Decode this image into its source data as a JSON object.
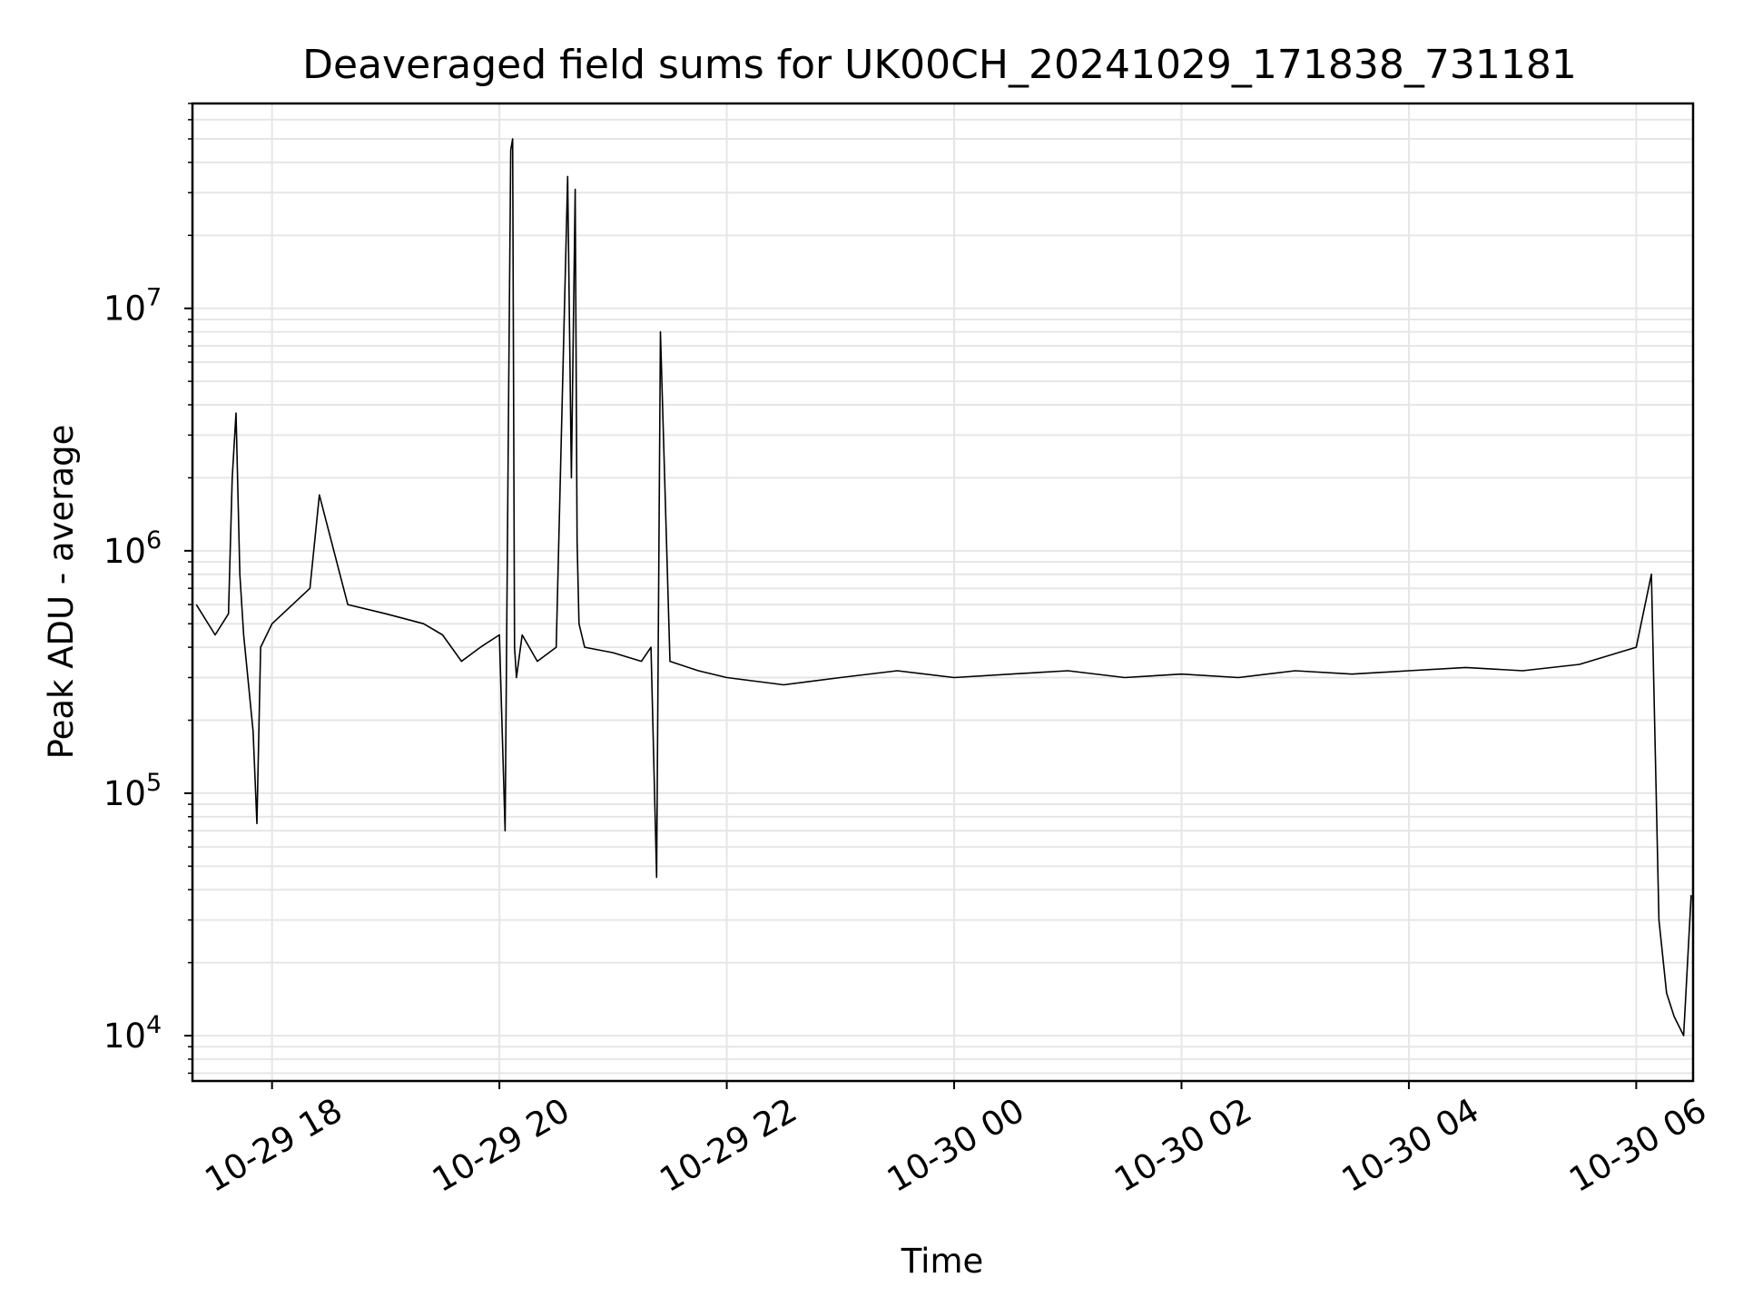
{
  "chart_data": {
    "type": "line",
    "title": "Deaveraged field sums for UK00CH_20241029_171838_731181",
    "xlabel": "Time",
    "ylabel": "Peak ADU - average",
    "y_scale": "log",
    "ylim": [
      6500,
      70000000
    ],
    "xlim": [
      "2024-10-29 17:18",
      "2024-10-30 06:30"
    ],
    "x_ticks": [
      {
        "value": "2024-10-29 18:00",
        "label": "10-29 18"
      },
      {
        "value": "2024-10-29 20:00",
        "label": "10-29 20"
      },
      {
        "value": "2024-10-29 22:00",
        "label": "10-29 22"
      },
      {
        "value": "2024-10-30 00:00",
        "label": "10-30 00"
      },
      {
        "value": "2024-10-30 02:00",
        "label": "10-30 02"
      },
      {
        "value": "2024-10-30 04:00",
        "label": "10-30 04"
      },
      {
        "value": "2024-10-30 06:00",
        "label": "10-30 06"
      }
    ],
    "y_ticks": [
      {
        "value": 10000,
        "base": "10",
        "exp": "4"
      },
      {
        "value": 100000,
        "base": "10",
        "exp": "5"
      },
      {
        "value": 1000000,
        "base": "10",
        "exp": "6"
      },
      {
        "value": 10000000,
        "base": "10",
        "exp": "7"
      }
    ],
    "grid": true,
    "line_color": "#000000",
    "grid_color": "#e6e6e6",
    "series": [
      {
        "x": [
          "2024-10-29 17:20",
          "2024-10-29 17:30",
          "2024-10-29 17:37",
          "2024-10-29 17:39",
          "2024-10-29 17:41",
          "2024-10-29 17:43",
          "2024-10-29 17:45",
          "2024-10-29 17:50",
          "2024-10-29 17:52",
          "2024-10-29 17:54",
          "2024-10-29 18:00",
          "2024-10-29 18:20",
          "2024-10-29 18:25",
          "2024-10-29 18:40",
          "2024-10-29 19:00",
          "2024-10-29 19:20",
          "2024-10-29 19:30",
          "2024-10-29 19:40",
          "2024-10-29 19:50",
          "2024-10-29 20:00",
          "2024-10-29 20:03",
          "2024-10-29 20:05",
          "2024-10-29 20:06",
          "2024-10-29 20:07",
          "2024-10-29 20:08",
          "2024-10-29 20:09",
          "2024-10-29 20:12",
          "2024-10-29 20:20",
          "2024-10-29 20:30",
          "2024-10-29 20:36",
          "2024-10-29 20:38",
          "2024-10-29 20:40",
          "2024-10-29 20:41",
          "2024-10-29 20:42",
          "2024-10-29 20:45",
          "2024-10-29 21:00",
          "2024-10-29 21:15",
          "2024-10-29 21:20",
          "2024-10-29 21:23",
          "2024-10-29 21:25",
          "2024-10-29 21:30",
          "2024-10-29 21:45",
          "2024-10-29 22:00",
          "2024-10-29 22:30",
          "2024-10-29 23:00",
          "2024-10-29 23:30",
          "2024-10-30 00:00",
          "2024-10-30 00:30",
          "2024-10-30 01:00",
          "2024-10-30 01:30",
          "2024-10-30 02:00",
          "2024-10-30 02:30",
          "2024-10-30 03:00",
          "2024-10-30 03:30",
          "2024-10-30 04:00",
          "2024-10-30 04:30",
          "2024-10-30 05:00",
          "2024-10-30 05:30",
          "2024-10-30 06:00",
          "2024-10-30 06:08",
          "2024-10-30 06:12",
          "2024-10-30 06:16",
          "2024-10-30 06:20",
          "2024-10-30 06:25",
          "2024-10-30 06:29"
        ],
        "y": [
          600000,
          450000,
          550000,
          2000000,
          3700000,
          800000,
          450000,
          180000,
          75000,
          400000,
          500000,
          700000,
          1700000,
          600000,
          550000,
          500000,
          450000,
          350000,
          400000,
          450000,
          70000,
          5500000,
          45000000,
          50000000,
          400000,
          300000,
          450000,
          350000,
          400000,
          35000000,
          2000000,
          31000000,
          1100000,
          500000,
          400000,
          380000,
          350000,
          400000,
          45000,
          8000000,
          350000,
          320000,
          300000,
          280000,
          300000,
          320000,
          300000,
          310000,
          320000,
          300000,
          310000,
          300000,
          320000,
          310000,
          320000,
          330000,
          320000,
          340000,
          400000,
          800000,
          30000,
          15000,
          12000,
          10000,
          38000
        ]
      }
    ]
  }
}
